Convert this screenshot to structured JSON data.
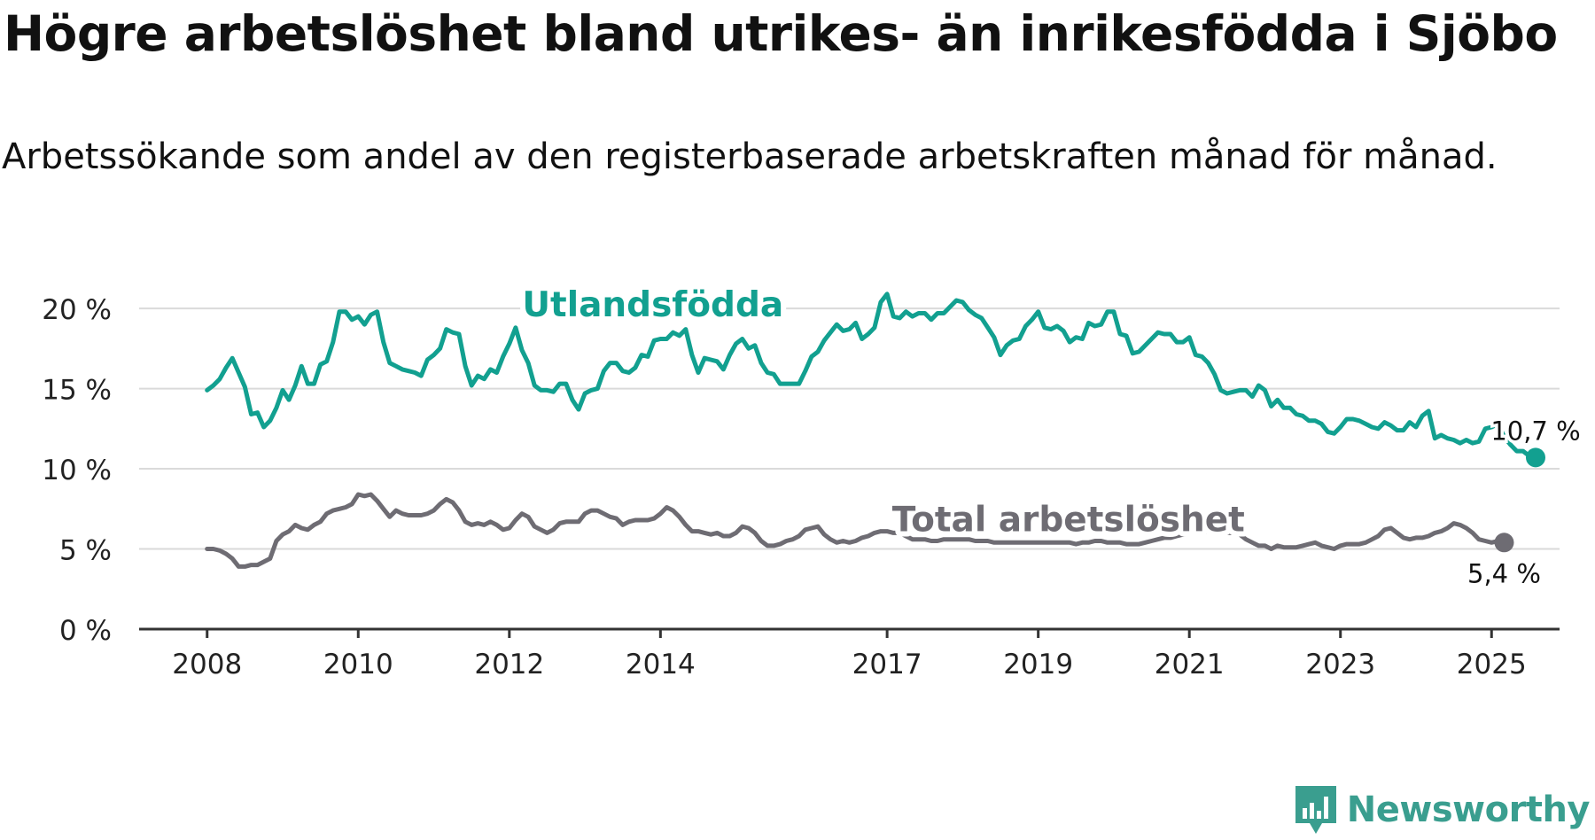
{
  "header": {
    "title": "Högre arbetslöshet bland utrikes- än inrikesfödda i Sjöbo",
    "subtitle": "Arbetssökande som andel av den registerbaserade arbetskraften månad för månad."
  },
  "brand": {
    "name": "Newsworthy",
    "icon": "newsworthy-logo-icon",
    "color": "#3a9e8f"
  },
  "chart_data": {
    "type": "line",
    "title": "Högre arbetslöshet bland utrikes- än inrikesfödda i Sjöbo",
    "subtitle": "Arbetssökande som andel av den registerbaserade arbetskraften månad för månad.",
    "xlabel": "",
    "ylabel": "",
    "x_start": 2008.0,
    "x_step": 0.0833333,
    "xlim": [
      2007.1,
      2025.9
    ],
    "ylim": [
      0,
      21
    ],
    "x_ticks": [
      2008,
      2010,
      2012,
      2014,
      2017,
      2019,
      2021,
      2023,
      2025
    ],
    "y_ticks": [
      0,
      5,
      10,
      15,
      20
    ],
    "y_tick_labels": [
      "0 %",
      "5 %",
      "10 %",
      "15 %",
      "20 %"
    ],
    "grid": true,
    "series": [
      {
        "name": "Utlandsfödda",
        "color": "#12a090",
        "end_label": "10,7 %",
        "values": [
          14.9,
          15.2,
          15.6,
          16.3,
          16.9,
          16.0,
          15.1,
          13.4,
          13.5,
          12.6,
          13.0,
          13.8,
          14.9,
          14.3,
          15.2,
          16.4,
          15.3,
          15.3,
          16.5,
          16.7,
          17.9,
          19.8,
          19.8,
          19.3,
          19.5,
          19.0,
          19.6,
          19.8,
          17.9,
          16.6,
          16.4,
          16.2,
          16.1,
          16.0,
          15.8,
          16.8,
          17.1,
          17.5,
          18.7,
          18.5,
          18.4,
          16.4,
          15.2,
          15.8,
          15.6,
          16.2,
          16.0,
          17.0,
          17.8,
          18.8,
          17.4,
          16.6,
          15.2,
          14.9,
          14.9,
          14.8,
          15.3,
          15.3,
          14.3,
          13.7,
          14.7,
          14.9,
          15.0,
          16.1,
          16.6,
          16.6,
          16.1,
          16.0,
          16.3,
          17.1,
          17.0,
          18.0,
          18.1,
          18.1,
          18.5,
          18.3,
          18.7,
          17.1,
          16.0,
          16.9,
          16.8,
          16.7,
          16.2,
          17.1,
          17.8,
          18.1,
          17.5,
          17.7,
          16.6,
          16.0,
          15.9,
          15.3,
          15.3,
          15.3,
          15.3,
          16.1,
          17.0,
          17.3,
          18.0,
          18.5,
          19.0,
          18.6,
          18.7,
          19.1,
          18.1,
          18.4,
          18.8,
          20.4,
          20.9,
          19.5,
          19.4,
          19.8,
          19.5,
          19.7,
          19.7,
          19.3,
          19.7,
          19.7,
          20.1,
          20.5,
          20.4,
          19.9,
          19.6,
          19.4,
          18.8,
          18.2,
          17.1,
          17.7,
          18.0,
          18.1,
          18.9,
          19.3,
          19.8,
          18.8,
          18.7,
          18.9,
          18.6,
          17.9,
          18.2,
          18.1,
          19.1,
          18.9,
          19.0,
          19.8,
          19.8,
          18.4,
          18.3,
          17.2,
          17.3,
          17.7,
          18.1,
          18.5,
          18.4,
          18.4,
          17.9,
          17.9,
          18.2,
          17.1,
          17.0,
          16.6,
          15.9,
          14.9,
          14.7,
          14.8,
          14.9,
          14.9,
          14.5,
          15.2,
          14.9,
          13.9,
          14.3,
          13.8,
          13.8,
          13.4,
          13.3,
          13.0,
          13.0,
          12.8,
          12.3,
          12.2,
          12.6,
          13.1,
          13.1,
          13.0,
          12.8,
          12.6,
          12.5,
          12.9,
          12.7,
          12.4,
          12.4,
          12.9,
          12.6,
          13.3,
          13.6,
          11.9,
          12.1,
          11.9,
          11.8,
          11.6,
          11.8,
          11.6,
          11.7,
          12.5,
          12.6,
          12.8,
          12.0,
          11.5,
          11.1,
          11.1,
          10.8,
          10.7
        ]
      },
      {
        "name": "Total arbetslöshet",
        "color": "#6e6c73",
        "end_label": "5,4 %",
        "values": [
          5.0,
          5.0,
          4.9,
          4.7,
          4.4,
          3.9,
          3.9,
          4.0,
          4.0,
          4.2,
          4.4,
          5.5,
          5.9,
          6.1,
          6.5,
          6.3,
          6.2,
          6.5,
          6.7,
          7.2,
          7.4,
          7.5,
          7.6,
          7.8,
          8.4,
          8.3,
          8.4,
          8.0,
          7.5,
          7.0,
          7.4,
          7.2,
          7.1,
          7.1,
          7.1,
          7.2,
          7.4,
          7.8,
          8.1,
          7.9,
          7.4,
          6.7,
          6.5,
          6.6,
          6.5,
          6.7,
          6.5,
          6.2,
          6.3,
          6.8,
          7.2,
          7.0,
          6.4,
          6.2,
          6.0,
          6.2,
          6.6,
          6.7,
          6.7,
          6.7,
          7.2,
          7.4,
          7.4,
          7.2,
          7.0,
          6.9,
          6.5,
          6.7,
          6.8,
          6.8,
          6.8,
          6.9,
          7.2,
          7.6,
          7.4,
          7.0,
          6.5,
          6.1,
          6.1,
          6.0,
          5.9,
          6.0,
          5.8,
          5.8,
          6.0,
          6.4,
          6.3,
          6.0,
          5.5,
          5.2,
          5.2,
          5.3,
          5.5,
          5.6,
          5.8,
          6.2,
          6.3,
          6.4,
          5.9,
          5.6,
          5.4,
          5.5,
          5.4,
          5.5,
          5.7,
          5.8,
          6.0,
          6.1,
          6.1,
          6.0,
          6.0,
          5.8,
          5.6,
          5.6,
          5.6,
          5.5,
          5.5,
          5.6,
          5.6,
          5.6,
          5.6,
          5.6,
          5.5,
          5.5,
          5.5,
          5.4,
          5.4,
          5.4,
          5.4,
          5.4,
          5.4,
          5.4,
          5.4,
          5.4,
          5.4,
          5.4,
          5.4,
          5.4,
          5.3,
          5.4,
          5.4,
          5.5,
          5.5,
          5.4,
          5.4,
          5.4,
          5.3,
          5.3,
          5.3,
          5.4,
          5.5,
          5.6,
          5.7,
          5.7,
          5.8,
          5.9,
          6.0,
          6.0,
          6.0,
          6.1,
          6.1,
          6.0,
          6.0,
          6.0,
          5.9,
          5.6,
          5.4,
          5.2,
          5.2,
          5.0,
          5.2,
          5.1,
          5.1,
          5.1,
          5.2,
          5.3,
          5.4,
          5.2,
          5.1,
          5.0,
          5.2,
          5.3,
          5.3,
          5.3,
          5.4,
          5.6,
          5.8,
          6.2,
          6.3,
          6.0,
          5.7,
          5.6,
          5.7,
          5.7,
          5.8,
          6.0,
          6.1,
          6.3,
          6.6,
          6.5,
          6.3,
          6.0,
          5.6,
          5.5,
          5.4,
          5.5,
          5.4
        ]
      }
    ],
    "annotations": [
      {
        "text": "Utlandsfödda",
        "series": "Utlandsfödda",
        "x": 2013.9,
        "y": 19.5
      },
      {
        "text": "Total arbetslöshet",
        "series": "Total arbetslöshet",
        "x": 2019.4,
        "y": 6.1
      }
    ]
  }
}
